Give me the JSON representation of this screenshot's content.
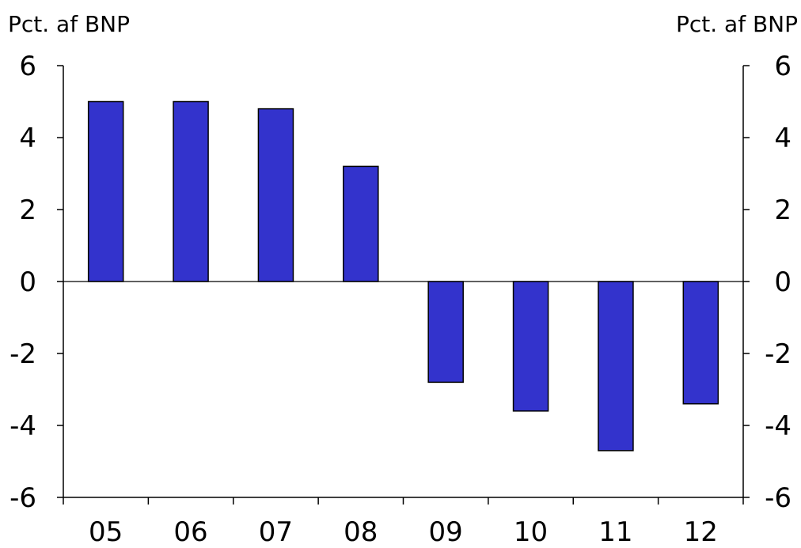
{
  "chart_data": {
    "type": "bar",
    "title": "",
    "ylabel_left": "Pct. af BNP",
    "ylabel_right": "Pct. af BNP",
    "categories": [
      "05",
      "06",
      "07",
      "08",
      "09",
      "10",
      "11",
      "12"
    ],
    "values": [
      5.0,
      5.0,
      4.8,
      3.2,
      -2.8,
      -3.6,
      -4.7,
      -3.4
    ],
    "ylim": [
      -6,
      6
    ],
    "yticks": [
      6,
      4,
      2,
      0,
      -2,
      -4,
      -6
    ],
    "ytick_labels": [
      "6",
      "4",
      "2",
      "0",
      "-2",
      "-4",
      "-6"
    ],
    "grid": false,
    "legend": "none",
    "bar_color": "#3333CC",
    "bar_edge_color": "#000000"
  }
}
